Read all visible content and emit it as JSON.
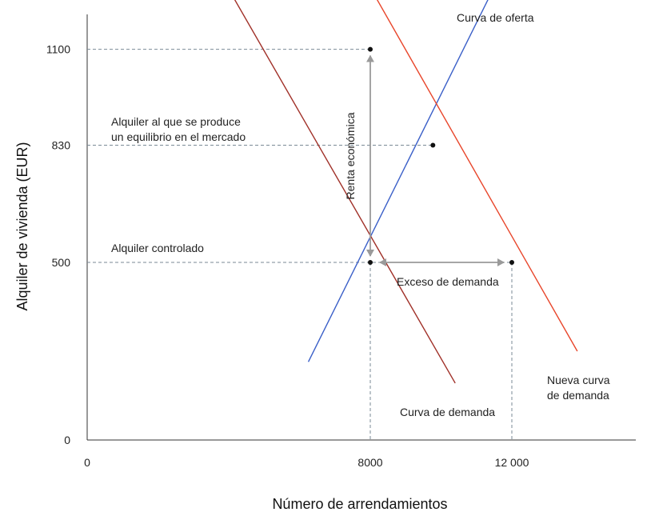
{
  "chart_data": {
    "type": "line",
    "xlabel": "Número de arrendamientos",
    "ylabel": "Alquiler de vivienda (EUR)",
    "xlim": [
      0,
      15500
    ],
    "ylim": [
      0,
      1250
    ],
    "x_ticks": [
      {
        "value": 0,
        "label": "0"
      },
      {
        "value": 8000,
        "label": "8000"
      },
      {
        "value": 12000,
        "label": "12 000"
      }
    ],
    "y_ticks": [
      {
        "value": 0,
        "label": "0"
      },
      {
        "value": 500,
        "label": "500"
      },
      {
        "value": 830,
        "label": "830"
      },
      {
        "value": 1100,
        "label": "1100"
      }
    ],
    "series": [
      {
        "name": "Curva de oferta",
        "color": "#3a5fc8",
        "points": [
          [
            6250,
            220
          ],
          [
            11750,
            1325
          ]
        ]
      },
      {
        "name": "Curva de demanda",
        "color": "#a03028",
        "points": [
          [
            3850,
            1295
          ],
          [
            10400,
            160
          ]
        ]
      },
      {
        "name": "Nueva curva de demanda",
        "color": "#e8452a",
        "points": [
          [
            7420,
            1375
          ],
          [
            13850,
            250
          ]
        ]
      }
    ],
    "points": [
      {
        "x": 8000,
        "y": 1100
      },
      {
        "x": 9770,
        "y": 830
      },
      {
        "x": 8000,
        "y": 500
      },
      {
        "x": 12000,
        "y": 500
      }
    ],
    "annotations": {
      "supply_label": "Curva de oferta",
      "demand_label": "Curva de demanda",
      "new_demand_label_1": "Nueva curva",
      "new_demand_label_2": "de demanda",
      "equilibrium_label_1": "Alquiler al que se produce",
      "equilibrium_label_2": "un equilibrio en el mercado",
      "controlled_label": "Alquiler controlado",
      "rent_label": "Renta económica",
      "excess_label": "Exceso de demanda"
    },
    "colors": {
      "guide": "#7a8a96",
      "arrow": "#9a9a9a",
      "axis": "#333333",
      "dot": "#111111"
    }
  }
}
